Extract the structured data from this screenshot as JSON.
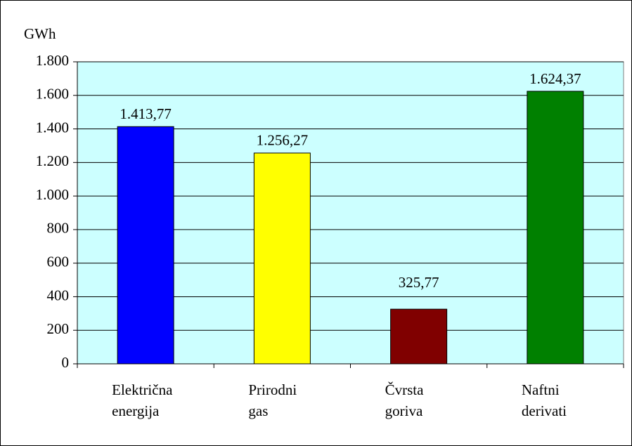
{
  "chart_data": {
    "type": "bar",
    "y_axis_label": "GWh",
    "categories": [
      "Električna\nenergija",
      "Prirodni\ngas",
      "Čvrsta\ngoriva",
      "Naftni\nderivati"
    ],
    "values": [
      1413.77,
      1256.27,
      325.77,
      1624.37
    ],
    "value_labels": [
      "1.413,77",
      "1.256,27",
      "325,77",
      "1.624,37"
    ],
    "colors": [
      "#0000ff",
      "#ffff00",
      "#800000",
      "#008000"
    ],
    "ylim": [
      0,
      1800
    ],
    "yticks": [
      0,
      200,
      400,
      600,
      800,
      {
        "value": 1000,
        "label": "1.000"
      },
      {
        "value": 1200,
        "label": "1.200"
      },
      {
        "value": 1400,
        "label": "1.400"
      },
      {
        "value": 1600,
        "label": "1.600"
      },
      {
        "value": 1800,
        "label": "1.800"
      }
    ],
    "grid": true
  }
}
